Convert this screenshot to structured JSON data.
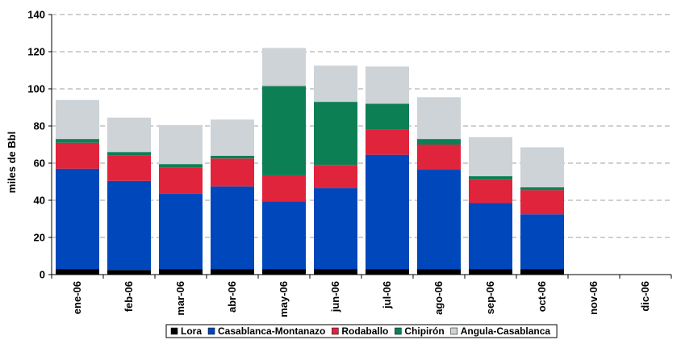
{
  "chart_data": {
    "type": "bar",
    "stacked": true,
    "title": "",
    "xlabel": "",
    "ylabel": "miles de Bbl",
    "ylim": [
      0,
      140
    ],
    "yticks": [
      0,
      20,
      40,
      60,
      80,
      100,
      120,
      140
    ],
    "grid": "horizontal dashed",
    "legend_position": "bottom",
    "categories": [
      "ene-06",
      "feb-06",
      "mar-06",
      "abr-06",
      "may-06",
      "jun-06",
      "jul-06",
      "ago-06",
      "sep-06",
      "oct-06",
      "nov-06",
      "dic-06"
    ],
    "series": [
      {
        "name": "Lora",
        "color": "#000000",
        "values": [
          3,
          2.5,
          3,
          3,
          3,
          3,
          3,
          3,
          3,
          3,
          null,
          null
        ]
      },
      {
        "name": "Casablanca-Montanazo",
        "color": "#0047BB",
        "values": [
          54,
          48,
          40.5,
          44.5,
          36.5,
          43.5,
          61.5,
          53.5,
          35.5,
          29.5,
          null,
          null
        ]
      },
      {
        "name": "Rodaballo",
        "color": "#E0243C",
        "values": [
          14,
          13.5,
          14,
          15,
          14,
          12.5,
          13.5,
          13.5,
          12.5,
          13,
          null,
          null
        ]
      },
      {
        "name": "Chipirón",
        "color": "#0D7F55",
        "values": [
          2,
          2,
          2,
          1.5,
          48,
          34,
          14,
          3,
          2,
          1.5,
          null,
          null
        ]
      },
      {
        "name": "Angula-Casablanca",
        "color": "#CDD3D6",
        "values": [
          21,
          18.5,
          21,
          19.5,
          20.5,
          19.5,
          20,
          22.5,
          21,
          21.5,
          null,
          null
        ]
      }
    ]
  }
}
